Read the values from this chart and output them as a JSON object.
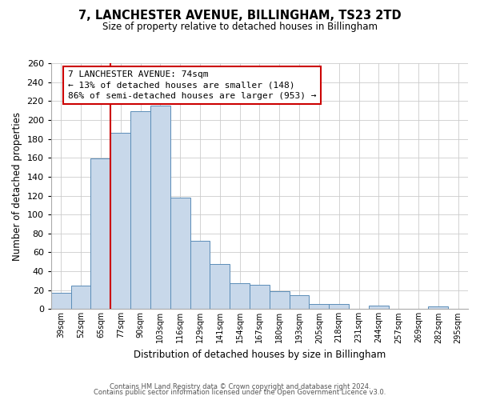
{
  "title": "7, LANCHESTER AVENUE, BILLINGHAM, TS23 2TD",
  "subtitle": "Size of property relative to detached houses in Billingham",
  "xlabel": "Distribution of detached houses by size in Billingham",
  "ylabel": "Number of detached properties",
  "bar_labels": [
    "39sqm",
    "52sqm",
    "65sqm",
    "77sqm",
    "90sqm",
    "103sqm",
    "116sqm",
    "129sqm",
    "141sqm",
    "154sqm",
    "167sqm",
    "180sqm",
    "193sqm",
    "205sqm",
    "218sqm",
    "231sqm",
    "244sqm",
    "257sqm",
    "269sqm",
    "282sqm",
    "295sqm"
  ],
  "bar_values": [
    17,
    25,
    159,
    186,
    209,
    215,
    118,
    72,
    48,
    27,
    26,
    19,
    15,
    5,
    5,
    0,
    4,
    0,
    0,
    3,
    0
  ],
  "bar_color": "#c8d8ea",
  "bar_edge_color": "#5b8db8",
  "ylim": [
    0,
    260
  ],
  "yticks": [
    0,
    20,
    40,
    60,
    80,
    100,
    120,
    140,
    160,
    180,
    200,
    220,
    240,
    260
  ],
  "property_line_color": "#cc0000",
  "annotation_title": "7 LANCHESTER AVENUE: 74sqm",
  "annotation_line1": "← 13% of detached houses are smaller (148)",
  "annotation_line2": "86% of semi-detached houses are larger (953) →",
  "footer1": "Contains HM Land Registry data © Crown copyright and database right 2024.",
  "footer2": "Contains public sector information licensed under the Open Government Licence v3.0.",
  "background_color": "#ffffff",
  "grid_color": "#cccccc"
}
